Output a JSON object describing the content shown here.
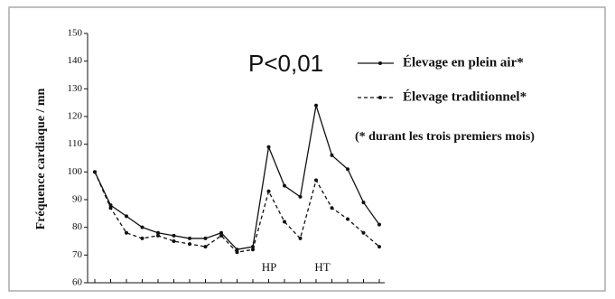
{
  "chart_data": {
    "type": "line",
    "y_label": "Fréquence cardiaque / mn",
    "stat_label": "P<0,01",
    "note": "(* durant les trois premiers mois)",
    "annotations": [
      "HP",
      "HT"
    ],
    "categories": [
      null,
      null,
      null,
      null,
      null,
      null,
      null,
      null,
      null,
      null,
      null,
      null,
      null,
      null,
      null,
      null,
      null,
      null,
      null
    ],
    "series": [
      {
        "name": "Élevage en plein air*",
        "color": "#111111",
        "dash": false,
        "values": [
          100,
          88,
          84,
          80,
          78,
          77,
          76,
          76,
          78,
          72,
          73,
          109,
          95,
          91,
          124,
          106,
          101,
          89,
          81
        ]
      },
      {
        "name": "Élevage traditionnel*",
        "color": "#111111",
        "dash": true,
        "values": [
          100,
          87,
          78,
          76,
          77,
          75,
          74,
          73,
          77,
          71,
          72,
          93,
          82,
          76,
          97,
          87,
          83,
          78,
          73
        ]
      }
    ],
    "ylim": [
      60,
      150
    ],
    "yticks": [
      60,
      70,
      80,
      90,
      100,
      110,
      120,
      130,
      140,
      150
    ]
  }
}
